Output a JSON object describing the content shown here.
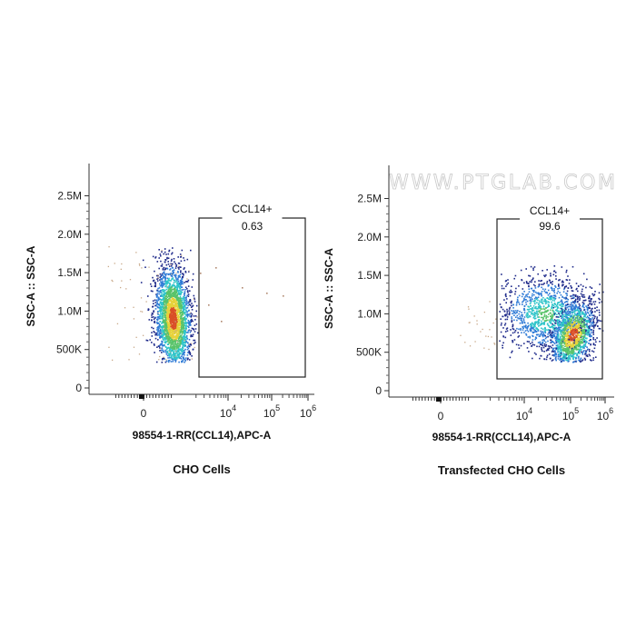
{
  "watermark": "WWW.PTGLAB.COM",
  "colors": {
    "density_scale": [
      "#1e2a8a",
      "#2f7bd6",
      "#2ec4c9",
      "#59c36a",
      "#e6d23a",
      "#d94f26"
    ],
    "sparse_point": "#c8a888",
    "gate_line": "#222222"
  },
  "chart_data": [
    {
      "type": "scatter",
      "subtype": "flow-cytometry-density-dot-plot",
      "caption": "CHO Cells",
      "xlabel": "98554-1-RR(CCL14),APC-A",
      "ylabel": "SSC-A :: SSC-A",
      "x_scale": "biexponential",
      "x_ticks": [
        {
          "value": "0",
          "base": "0",
          "exp": ""
        },
        {
          "value": "10^4",
          "base": "10",
          "exp": "4"
        },
        {
          "value": "10^5",
          "base": "10",
          "exp": "5"
        },
        {
          "value": "10^6",
          "base": "10",
          "exp": "6"
        }
      ],
      "y_ticks": [
        "0",
        "500K",
        "1.0M",
        "1.5M",
        "2.0M",
        "2.5M"
      ],
      "ylim": [
        0,
        2750000
      ],
      "gate": {
        "name": "CCL14+",
        "percent": "0.63",
        "x_range": [
          "~10^3.2",
          "10^6"
        ],
        "y_range": [
          150000,
          2250000
        ]
      },
      "population": {
        "center_x": "~10^3",
        "center_y": 950000,
        "spread_y": [
          400000,
          1850000
        ],
        "sparse_outliers_in_gate": true
      }
    },
    {
      "type": "scatter",
      "subtype": "flow-cytometry-density-dot-plot",
      "caption": "Transfected CHO Cells",
      "xlabel": "98554-1-RR(CCL14),APC-A",
      "ylabel": "SSC-A :: SSC-A",
      "x_scale": "biexponential",
      "x_ticks": [
        {
          "value": "0",
          "base": "0",
          "exp": ""
        },
        {
          "value": "10^4",
          "base": "10",
          "exp": "4"
        },
        {
          "value": "10^5",
          "base": "10",
          "exp": "5"
        },
        {
          "value": "10^6",
          "base": "10",
          "exp": "6"
        }
      ],
      "y_ticks": [
        "0",
        "500K",
        "1.0M",
        "1.5M",
        "2.0M",
        "2.5M"
      ],
      "ylim": [
        0,
        2750000
      ],
      "gate": {
        "name": "CCL14+",
        "percent": "99.6",
        "x_range": [
          "~10^3.2",
          "10^6"
        ],
        "y_range": [
          150000,
          2250000
        ]
      },
      "population": {
        "center_x": "~10^5.1",
        "center_y": 700000,
        "spread_y": [
          400000,
          1650000
        ],
        "sparse_outliers_left": true
      }
    }
  ]
}
